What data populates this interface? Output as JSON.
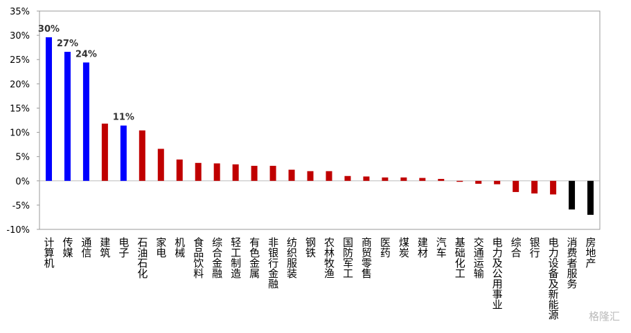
{
  "chart_data": {
    "type": "bar",
    "categories": [
      "计算机",
      "传媒",
      "通信",
      "建筑",
      "电子",
      "石油石化",
      "家电",
      "机械",
      "食品饮料",
      "综合金融",
      "轻工制造",
      "有色金属",
      "非银行金融",
      "纺织服装",
      "钢铁",
      "农林牧渔",
      "国防军工",
      "商贸零售",
      "医药",
      "煤炭",
      "建材",
      "汽车",
      "基础化工",
      "交通运输",
      "电力及公用事业",
      "综合",
      "银行",
      "电力设备及新能源",
      "消费者服务",
      "房地产"
    ],
    "values": [
      29.6,
      26.6,
      24.4,
      11.8,
      11.4,
      10.4,
      6.6,
      4.4,
      3.7,
      3.6,
      3.4,
      3.1,
      3.1,
      2.3,
      2.0,
      2.0,
      1.0,
      0.9,
      0.7,
      0.7,
      0.6,
      0.4,
      -0.2,
      -0.6,
      -0.7,
      -2.3,
      -2.6,
      -2.8,
      -5.9,
      -7.0
    ],
    "value_labels": [
      "30%",
      "27%",
      "24%",
      null,
      "11%",
      null,
      null,
      null,
      null,
      null,
      null,
      null,
      null,
      null,
      null,
      null,
      null,
      null,
      null,
      null,
      null,
      null,
      null,
      null,
      null,
      null,
      null,
      null,
      null,
      null
    ],
    "colors": [
      "#0000ff",
      "#0000ff",
      "#0000ff",
      "#c00000",
      "#0000ff",
      "#c00000",
      "#c00000",
      "#c00000",
      "#c00000",
      "#c00000",
      "#c00000",
      "#c00000",
      "#c00000",
      "#c00000",
      "#c00000",
      "#c00000",
      "#c00000",
      "#c00000",
      "#c00000",
      "#c00000",
      "#c00000",
      "#c00000",
      "#c00000",
      "#c00000",
      "#c00000",
      "#c00000",
      "#c00000",
      "#c00000",
      "#000000",
      "#000000"
    ],
    "ylim": [
      -10,
      35
    ],
    "yticks": [
      {
        "value": -10,
        "label": "-10%"
      },
      {
        "value": -5,
        "label": "-5%"
      },
      {
        "value": 0,
        "label": "0%"
      },
      {
        "value": 5,
        "label": "5%"
      },
      {
        "value": 10,
        "label": "10%"
      },
      {
        "value": 15,
        "label": "15%"
      },
      {
        "value": 20,
        "label": "20%"
      },
      {
        "value": 25,
        "label": "25%"
      },
      {
        "value": 30,
        "label": "30%"
      },
      {
        "value": 35,
        "label": "35%"
      }
    ],
    "grid": false,
    "watermark": "格隆汇"
  }
}
